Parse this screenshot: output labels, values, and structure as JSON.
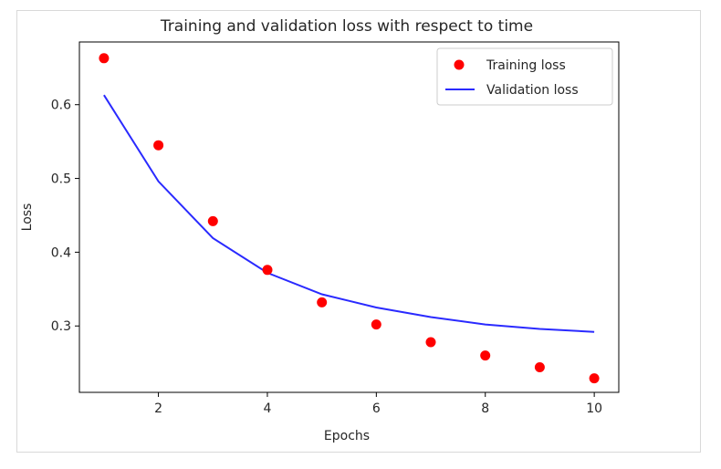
{
  "chart_data": {
    "type": "line",
    "title": "Training and validation loss with respect to time",
    "xlabel": "Epochs",
    "ylabel": "Loss",
    "x": [
      1,
      2,
      3,
      4,
      5,
      6,
      7,
      8,
      9,
      10
    ],
    "xlim": [
      0.55,
      10.45
    ],
    "ylim": [
      0.21,
      0.685
    ],
    "xticks": [
      2,
      4,
      6,
      8,
      10
    ],
    "xtick_labels": [
      "2",
      "4",
      "6",
      "8",
      "10"
    ],
    "yticks": [
      0.3,
      0.4,
      0.5,
      0.6
    ],
    "ytick_labels": [
      "0.3",
      "0.4",
      "0.5",
      "0.6"
    ],
    "grid": false,
    "legend_position": "top-right",
    "series": [
      {
        "name": "Training loss",
        "kind": "scatter",
        "color": "#ff0000",
        "values": [
          0.663,
          0.545,
          0.442,
          0.376,
          0.332,
          0.302,
          0.278,
          0.26,
          0.244,
          0.229
        ]
      },
      {
        "name": "Validation loss",
        "kind": "line",
        "color": "#2a2aff",
        "values": [
          0.613,
          0.496,
          0.419,
          0.372,
          0.343,
          0.325,
          0.312,
          0.302,
          0.296,
          0.292
        ]
      }
    ]
  }
}
